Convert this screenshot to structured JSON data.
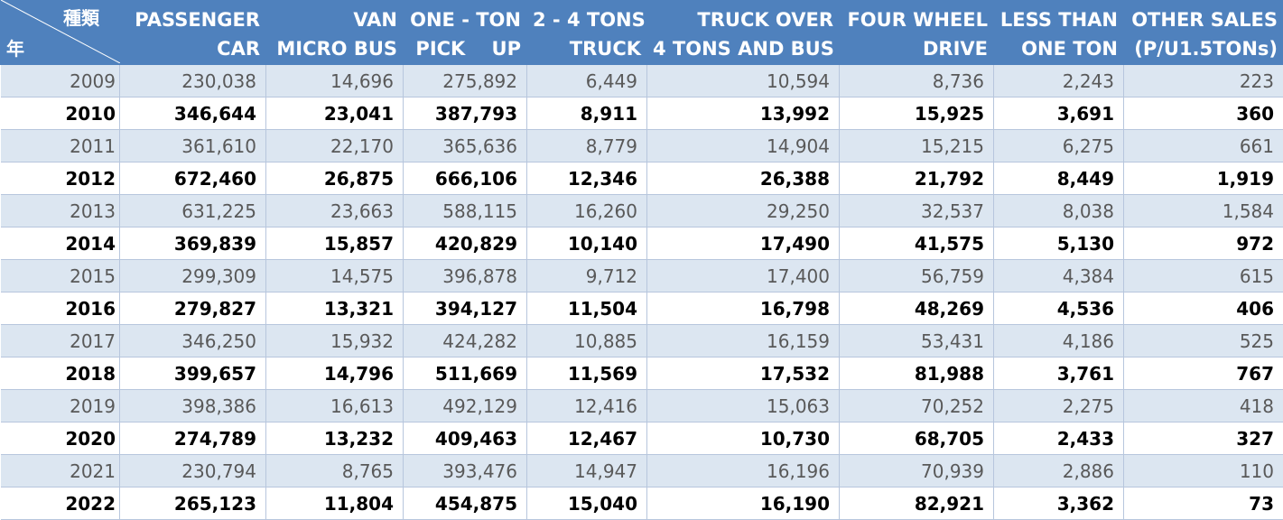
{
  "header": {
    "corner_kind": "種類",
    "corner_year": "年",
    "columns": [
      {
        "line1": "PASSENGER",
        "line2": "CAR"
      },
      {
        "line1": "VAN",
        "line2": "MICRO BUS"
      },
      {
        "line1": "ONE - TON",
        "line2": "PICK    UP"
      },
      {
        "line1": "2 - 4 TONS",
        "line2": "TRUCK"
      },
      {
        "line1": "TRUCK OVER",
        "line2": "4 TONS AND BUS"
      },
      {
        "line1": "FOUR WHEEL",
        "line2": "DRIVE"
      },
      {
        "line1": "LESS THAN",
        "line2": "ONE TON"
      },
      {
        "line1": "OTHER SALES",
        "line2": "(P/U1.5TONs)"
      }
    ]
  },
  "rows": [
    {
      "year": "2009",
      "values": [
        "230,038",
        "14,696",
        "275,892",
        "6,449",
        "10,594",
        "8,736",
        "2,243",
        "223"
      ]
    },
    {
      "year": "2010",
      "values": [
        "346,644",
        "23,041",
        "387,793",
        "8,911",
        "13,992",
        "15,925",
        "3,691",
        "360"
      ]
    },
    {
      "year": "2011",
      "values": [
        "361,610",
        "22,170",
        "365,636",
        "8,779",
        "14,904",
        "15,215",
        "6,275",
        "661"
      ]
    },
    {
      "year": "2012",
      "values": [
        "672,460",
        "26,875",
        "666,106",
        "12,346",
        "26,388",
        "21,792",
        "8,449",
        "1,919"
      ]
    },
    {
      "year": "2013",
      "values": [
        "631,225",
        "23,663",
        "588,115",
        "16,260",
        "29,250",
        "32,537",
        "8,038",
        "1,584"
      ]
    },
    {
      "year": "2014",
      "values": [
        "369,839",
        "15,857",
        "420,829",
        "10,140",
        "17,490",
        "41,575",
        "5,130",
        "972"
      ]
    },
    {
      "year": "2015",
      "values": [
        "299,309",
        "14,575",
        "396,878",
        "9,712",
        "17,400",
        "56,759",
        "4,384",
        "615"
      ]
    },
    {
      "year": "2016",
      "values": [
        "279,827",
        "13,321",
        "394,127",
        "11,504",
        "16,798",
        "48,269",
        "4,536",
        "406"
      ]
    },
    {
      "year": "2017",
      "values": [
        "346,250",
        "15,932",
        "424,282",
        "10,885",
        "16,159",
        "53,431",
        "4,186",
        "525"
      ]
    },
    {
      "year": "2018",
      "values": [
        "399,657",
        "14,796",
        "511,669",
        "11,569",
        "17,532",
        "81,988",
        "3,761",
        "767"
      ]
    },
    {
      "year": "2019",
      "values": [
        "398,386",
        "16,613",
        "492,129",
        "12,416",
        "15,063",
        "70,252",
        "2,275",
        "418"
      ]
    },
    {
      "year": "2020",
      "values": [
        "274,789",
        "13,232",
        "409,463",
        "12,467",
        "10,730",
        "68,705",
        "2,433",
        "327"
      ]
    },
    {
      "year": "2021",
      "values": [
        "230,794",
        "8,765",
        "393,476",
        "14,947",
        "16,196",
        "70,939",
        "2,886",
        "110"
      ]
    },
    {
      "year": "2022",
      "values": [
        "265,123",
        "11,804",
        "454,875",
        "15,040",
        "16,190",
        "82,921",
        "3,362",
        "73"
      ]
    }
  ],
  "colors": {
    "header_bg": "#4f81bd",
    "header_text": "#ffffff",
    "band_odd": "#dce6f1",
    "band_even": "#ffffff"
  }
}
